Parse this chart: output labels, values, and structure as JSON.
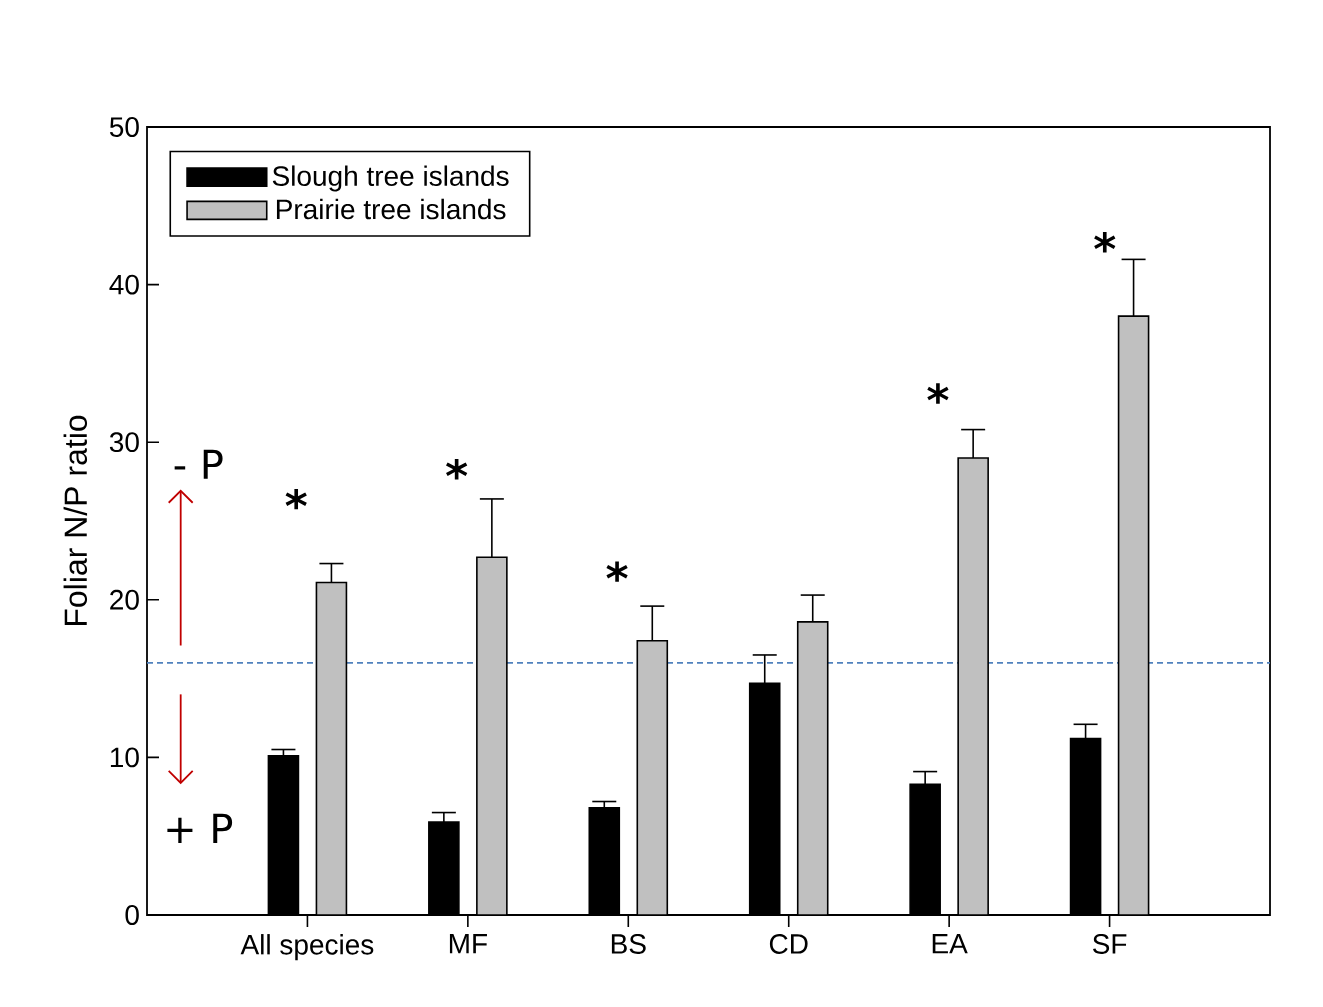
{
  "chart_data": {
    "type": "bar",
    "ylabel": "Foliar N/P ratio",
    "categories": [
      "All species",
      "MF",
      "BS",
      "CD",
      "EA",
      "SF"
    ],
    "series": [
      {
        "name": "Slough tree islands",
        "color": "#000000",
        "values": [
          10.1,
          5.9,
          6.8,
          14.7,
          8.3,
          11.2
        ],
        "errors": [
          0.4,
          0.6,
          0.4,
          1.8,
          0.8,
          0.9
        ]
      },
      {
        "name": "Prairie tree islands",
        "color": "#c0c0c0",
        "values": [
          21.1,
          22.7,
          17.4,
          18.6,
          29.0,
          38.0
        ],
        "errors": [
          1.2,
          3.7,
          2.2,
          1.7,
          1.8,
          3.6
        ]
      }
    ],
    "ylim": [
      0,
      50
    ],
    "yticks": [
      0,
      10,
      20,
      30,
      40,
      50
    ],
    "legend": "top left",
    "ref_lines": [
      {
        "axis": "y",
        "value": 16,
        "color": "#4f81bd",
        "line_style": "dashed"
      }
    ],
    "annotations": [
      "*",
      "*",
      "*",
      "*",
      "*",
      "- P",
      "+ P"
    ]
  }
}
